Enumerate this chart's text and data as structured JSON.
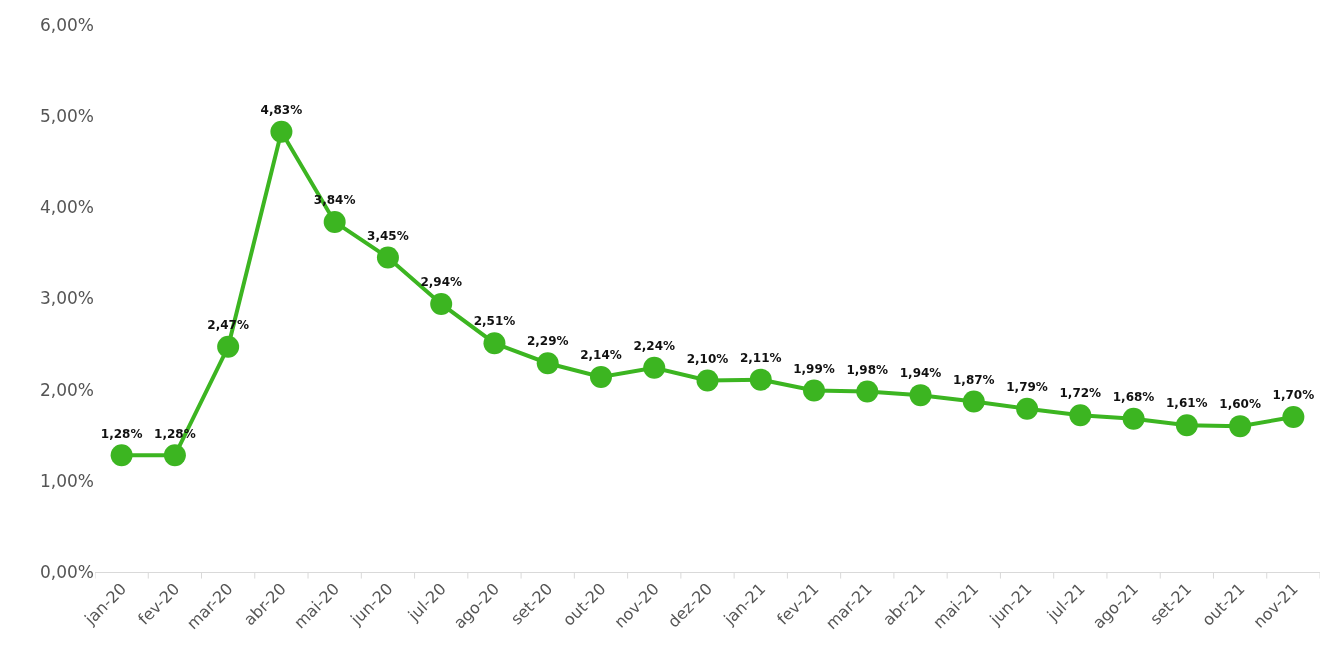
{
  "chart_data": {
    "type": "line",
    "categories": [
      "jan-20",
      "fev-20",
      "mar-20",
      "abr-20",
      "mai-20",
      "jun-20",
      "jul-20",
      "ago-20",
      "set-20",
      "out-20",
      "nov-20",
      "dez-20",
      "jan-21",
      "fev-21",
      "mar-21",
      "abr-21",
      "mai-21",
      "jun-21",
      "jul-21",
      "ago-21",
      "set-21",
      "out-21",
      "nov-21"
    ],
    "series": [
      {
        "color": "#3cb521",
        "values": [
          1.28,
          1.28,
          2.47,
          4.83,
          3.84,
          3.45,
          2.94,
          2.51,
          2.29,
          2.14,
          2.24,
          2.1,
          2.11,
          1.99,
          1.98,
          1.94,
          1.87,
          1.79,
          1.72,
          1.68,
          1.61,
          1.6,
          1.7
        ],
        "value_labels": [
          "1,28%",
          "1,28%",
          "2,47%",
          "4,83%",
          "3,84%",
          "3,45%",
          "2,94%",
          "2,51%",
          "2,29%",
          "2,14%",
          "2,24%",
          "2,10%",
          "2,11%",
          "1,99%",
          "1,98%",
          "1,94%",
          "1,87%",
          "1,79%",
          "1,72%",
          "1,68%",
          "1,61%",
          "1,60%",
          "1,70%"
        ]
      }
    ],
    "ylim": [
      0,
      6
    ],
    "yticks": [
      {
        "value": 0,
        "label": "0,00%"
      },
      {
        "value": 1,
        "label": "1,00%"
      },
      {
        "value": 2,
        "label": "2,00%"
      },
      {
        "value": 3,
        "label": "3,00%"
      },
      {
        "value": 4,
        "label": "4,00%"
      },
      {
        "value": 5,
        "label": "5,00%"
      },
      {
        "value": 6,
        "label": "6,00%"
      }
    ],
    "marker": "circle",
    "line_style": "solid"
  }
}
